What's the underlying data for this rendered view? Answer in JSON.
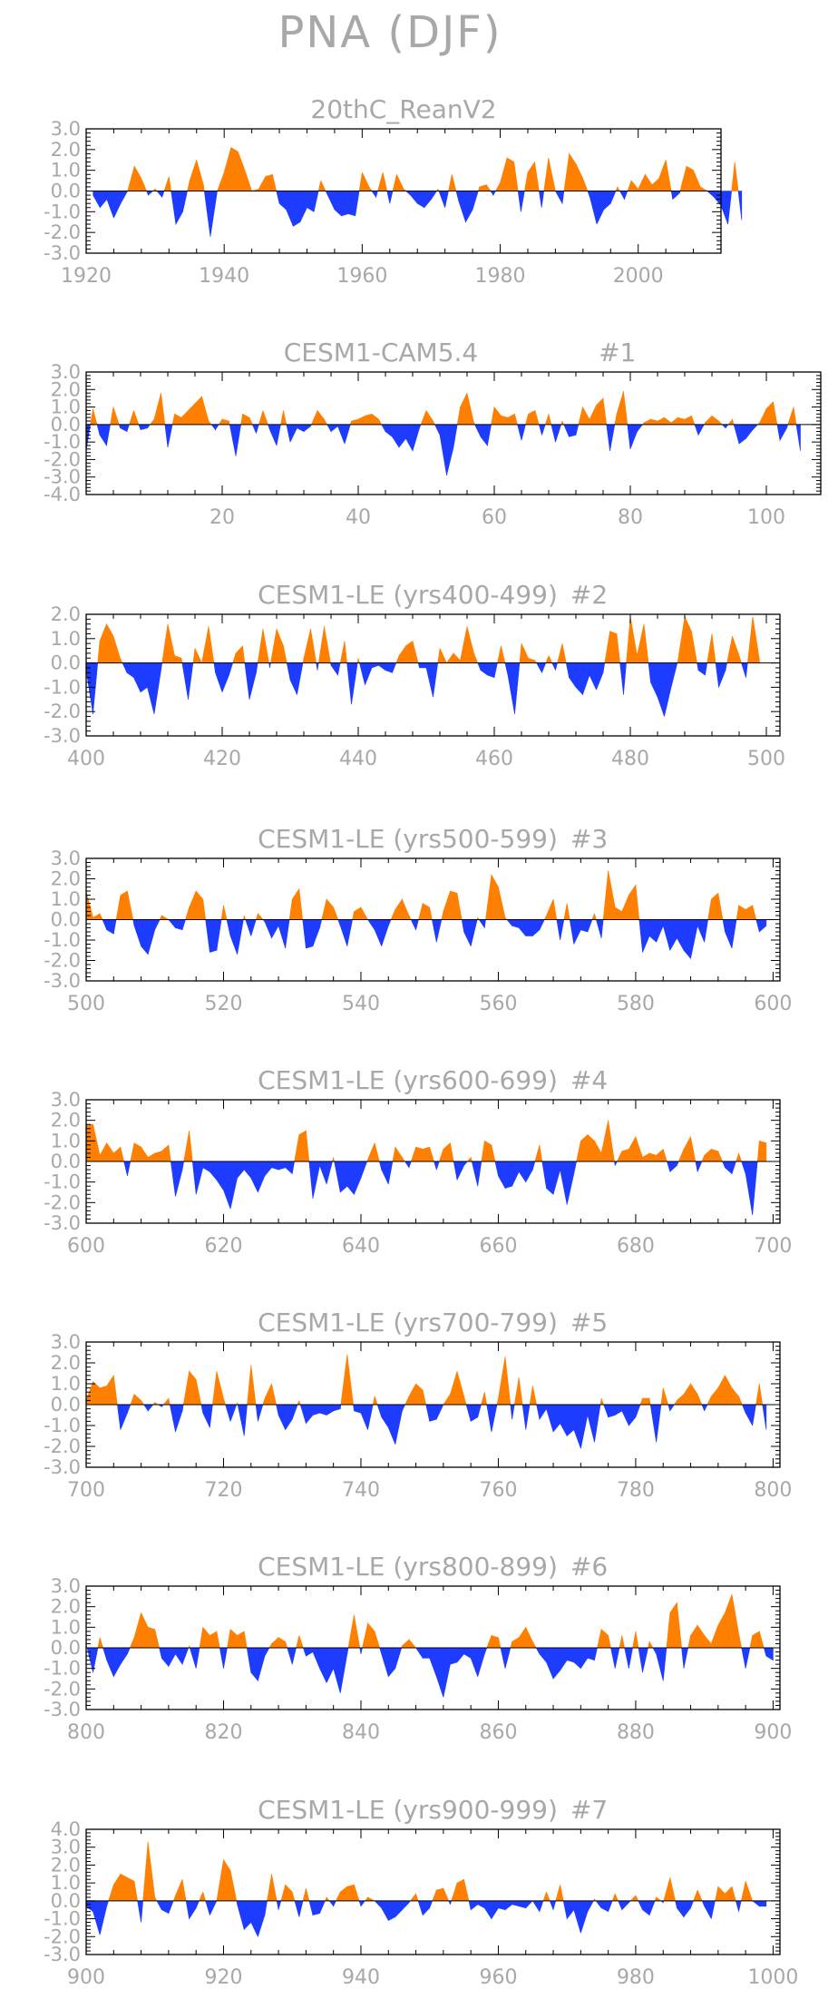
{
  "figure": {
    "title": "PNA (DJF)"
  },
  "colors": {
    "positive": "#ff8000",
    "negative": "#1e3cff",
    "text": "#a8a8a8",
    "frame": "#000000"
  },
  "chart_data": [
    {
      "type": "area",
      "title": "20thC_ReanV2",
      "xlim": [
        1920,
        2012
      ],
      "ylim": [
        -3,
        3
      ],
      "yticks": [
        3.0,
        2.0,
        1.0,
        0.0,
        -1.0,
        -2.0,
        -3.0
      ],
      "ytick_labels": [
        "3.0",
        "2.0",
        "1.0",
        "0.0",
        "-1.0",
        "-2.0",
        "-3.0"
      ],
      "xticks": [
        1920,
        1940,
        1960,
        1980,
        2000
      ],
      "xtick_labels": [
        "1920",
        "1940",
        "1960",
        "1980",
        "2000"
      ],
      "x_start": 1921,
      "values": [
        -0.2,
        -0.8,
        -0.4,
        -1.3,
        -0.6,
        0.0,
        1.2,
        0.6,
        -0.2,
        0.1,
        -0.3,
        0.7,
        -1.6,
        -1.0,
        0.5,
        1.5,
        0.3,
        -2.2,
        0.0,
        0.9,
        2.1,
        1.9,
        1.0,
        0.0,
        0.1,
        0.7,
        0.8,
        -0.6,
        -0.9,
        -1.7,
        -1.5,
        -0.8,
        -1.0,
        0.5,
        -0.2,
        -0.9,
        -1.2,
        -1.1,
        -1.2,
        0.9,
        0.2,
        -0.3,
        0.9,
        -0.6,
        0.8,
        0.1,
        -0.2,
        -0.6,
        -0.8,
        -0.4,
        0.1,
        -0.8,
        0.8,
        -0.5,
        -1.5,
        -0.9,
        0.2,
        0.3,
        -0.2,
        0.4,
        1.6,
        1.4,
        -1.0,
        0.9,
        1.4,
        -0.8,
        1.6,
        0.0,
        -0.6,
        1.8,
        1.3,
        0.6,
        -0.3,
        -1.6,
        -0.9,
        -0.6,
        0.2,
        -0.4,
        0.5,
        0.1,
        0.8,
        0.3,
        0.6,
        1.5,
        -0.4,
        -0.1,
        1.2,
        1.0,
        0.2,
        0.0,
        -0.3,
        -0.7,
        -1.6,
        1.4,
        -1.4
      ]
    },
    {
      "type": "area",
      "title": "CESM1-CAM5.4",
      "run_label": "#1",
      "xlim": [
        0,
        108
      ],
      "ylim": [
        -4,
        3
      ],
      "yticks": [
        3.0,
        2.0,
        1.0,
        0.0,
        -1.0,
        -2.0,
        -3.0,
        -4.0
      ],
      "ytick_labels": [
        "3.0",
        "2.0",
        "1.0",
        "0.0",
        "-1.0",
        "-2.0",
        "-3.0",
        "-4.0"
      ],
      "xticks": [
        20,
        40,
        60,
        80,
        100
      ],
      "xtick_labels": [
        "20",
        "40",
        "60",
        "80",
        "100"
      ],
      "x_start": 0,
      "values": [
        -1.5,
        0.9,
        -0.6,
        -1.2,
        1.0,
        -0.2,
        -0.4,
        0.8,
        -0.3,
        -0.2,
        0.3,
        1.8,
        -1.3,
        0.6,
        0.4,
        0.8,
        1.2,
        1.6,
        0.2,
        -0.3,
        0.3,
        0.2,
        -1.8,
        0.6,
        0.4,
        -0.5,
        0.8,
        -0.3,
        -1.2,
        0.8,
        -1.0,
        -0.2,
        -0.4,
        -0.1,
        0.8,
        0.3,
        -0.4,
        -0.1,
        -1.1,
        0.2,
        0.3,
        0.5,
        0.6,
        0.3,
        -0.4,
        -0.7,
        -1.3,
        -0.8,
        -1.5,
        -0.2,
        0.8,
        0.2,
        -0.6,
        -2.9,
        -1.3,
        1.0,
        1.8,
        0.1,
        -0.7,
        -1.2,
        1.0,
        0.5,
        0.4,
        0.6,
        -0.9,
        0.6,
        0.8,
        -0.6,
        0.6,
        -1.0,
        0.2,
        -0.7,
        -0.6,
        1.0,
        0.3,
        1.1,
        1.5,
        -1.5,
        0.6,
        1.9,
        -1.4,
        -0.4,
        0.1,
        0.3,
        0.2,
        0.4,
        0.1,
        0.4,
        0.3,
        0.5,
        -0.6,
        0.1,
        0.5,
        0.2,
        -0.2,
        0.3,
        -1.1,
        -0.8,
        -0.3,
        0.1,
        0.9,
        1.3,
        -0.9,
        -0.2,
        1.0,
        -1.5
      ]
    },
    {
      "type": "area",
      "title": "CESM1-LE (yrs400-499)",
      "run_label": "#2",
      "xlim": [
        400,
        502
      ],
      "ylim": [
        -3,
        2
      ],
      "yticks": [
        2.0,
        1.0,
        0.0,
        -1.0,
        -2.0,
        -3.0
      ],
      "ytick_labels": [
        "2.0",
        "1.0",
        "0.0",
        "-1.0",
        "-2.0",
        "-3.0"
      ],
      "xticks": [
        400,
        420,
        440,
        460,
        480,
        500
      ],
      "xtick_labels": [
        "400",
        "420",
        "440",
        "460",
        "480",
        "500"
      ],
      "x_start": 400,
      "values": [
        -0.3,
        -2.1,
        0.9,
        1.6,
        1.1,
        0.2,
        -0.4,
        -0.6,
        -1.2,
        -1.0,
        -2.1,
        -0.3,
        1.6,
        0.3,
        0.2,
        -1.5,
        0.6,
        0.0,
        1.5,
        -0.4,
        -1.2,
        -0.5,
        0.4,
        0.7,
        -1.5,
        -0.4,
        1.4,
        -0.2,
        1.4,
        0.7,
        -0.7,
        -1.3,
        0.2,
        1.4,
        -0.3,
        1.5,
        -0.1,
        -0.5,
        0.9,
        -1.7,
        0.2,
        -0.9,
        -0.2,
        -0.1,
        -0.3,
        -0.4,
        0.3,
        0.7,
        0.9,
        -0.2,
        -0.2,
        -1.4,
        0.6,
        0.0,
        0.4,
        0.1,
        1.5,
        0.4,
        -0.3,
        -0.5,
        -0.6,
        0.7,
        -0.5,
        -2.1,
        0.8,
        0.2,
        0.1,
        -0.4,
        0.3,
        -0.3,
        0.8,
        -0.6,
        -1.0,
        -1.3,
        -0.5,
        -1.1,
        -0.4,
        1.3,
        1.2,
        -1.3,
        1.9,
        0.3,
        1.6,
        -0.8,
        -1.4,
        -2.2,
        -1.0,
        0.1,
        1.9,
        1.3,
        -0.3,
        -0.5,
        1.2,
        -1.0,
        -0.3,
        1.1,
        0.3,
        -0.6,
        1.9,
        0.1
      ]
    },
    {
      "type": "area",
      "title": "CESM1-LE (yrs500-599)",
      "run_label": "#3",
      "xlim": [
        500,
        601
      ],
      "ylim": [
        -3,
        3
      ],
      "yticks": [
        3.0,
        2.0,
        1.0,
        0.0,
        -1.0,
        -2.0,
        -3.0
      ],
      "ytick_labels": [
        "3.0",
        "2.0",
        "1.0",
        "0.0",
        "-1.0",
        "-2.0",
        "-3.0"
      ],
      "xticks": [
        500,
        520,
        540,
        560,
        580,
        600
      ],
      "xtick_labels": [
        "500",
        "520",
        "540",
        "560",
        "580",
        "600"
      ],
      "x_start": 500,
      "values": [
        1.4,
        0.1,
        0.3,
        -0.5,
        -0.7,
        1.2,
        1.4,
        -0.3,
        -1.3,
        -1.7,
        -0.5,
        0.2,
        0.0,
        -0.4,
        -0.5,
        0.6,
        1.4,
        1.0,
        -1.6,
        -1.5,
        0.7,
        -0.8,
        -1.7,
        0.2,
        -0.8,
        0.3,
        -0.1,
        -0.9,
        -0.3,
        -1.4,
        1.0,
        1.5,
        -1.4,
        -1.3,
        -0.4,
        1.0,
        0.6,
        -0.3,
        -1.3,
        0.4,
        0.6,
        0.0,
        -0.5,
        -1.3,
        -0.3,
        0.5,
        1.0,
        0.2,
        -0.5,
        0.8,
        0.6,
        -1.1,
        0.4,
        1.4,
        1.3,
        -0.6,
        -1.3,
        0.1,
        -0.4,
        2.2,
        1.6,
        0.1,
        -0.3,
        -0.4,
        -0.8,
        -0.8,
        -0.5,
        0.2,
        1.0,
        -1.0,
        0.8,
        -1.2,
        -0.5,
        -0.6,
        0.3,
        -0.9,
        2.4,
        0.6,
        0.4,
        1.2,
        1.7,
        -1.6,
        -0.8,
        -1.1,
        -0.3,
        -1.5,
        -0.9,
        -1.5,
        -1.9,
        -0.3,
        -1.1,
        1.0,
        1.3,
        -0.6,
        -1.4,
        0.7,
        0.5,
        0.7,
        -0.6,
        -0.3
      ]
    },
    {
      "type": "area",
      "title": "CESM1-LE (yrs600-699)",
      "run_label": "#4",
      "xlim": [
        600,
        701
      ],
      "ylim": [
        -3,
        3
      ],
      "yticks": [
        3.0,
        2.0,
        1.0,
        0.0,
        -1.0,
        -2.0,
        -3.0
      ],
      "ytick_labels": [
        "3.0",
        "2.0",
        "1.0",
        "0.0",
        "-1.0",
        "-2.0",
        "-3.0"
      ],
      "xticks": [
        600,
        620,
        640,
        660,
        680,
        700
      ],
      "xtick_labels": [
        "600",
        "620",
        "640",
        "660",
        "680",
        "700"
      ],
      "x_start": 600,
      "values": [
        1.8,
        1.8,
        0.3,
        0.9,
        0.4,
        0.7,
        -0.7,
        0.9,
        0.7,
        0.2,
        0.4,
        0.5,
        0.8,
        -1.7,
        -0.4,
        1.5,
        -1.6,
        -0.3,
        -0.5,
        -0.9,
        -1.4,
        -2.3,
        -0.8,
        -0.4,
        -0.8,
        -1.5,
        -0.7,
        -0.3,
        -0.4,
        -0.3,
        -0.6,
        1.3,
        1.5,
        -1.8,
        -0.2,
        -1.1,
        0.2,
        -1.5,
        -1.2,
        -1.6,
        -0.8,
        0.1,
        0.9,
        -0.4,
        -1.1,
        0.7,
        0.2,
        -0.3,
        0.7,
        0.6,
        0.7,
        -0.4,
        0.6,
        0.9,
        -0.9,
        -0.2,
        0.2,
        -1.2,
        1.0,
        0.8,
        -0.7,
        -1.3,
        -1.2,
        -0.5,
        -1.0,
        -0.4,
        0.8,
        -1.3,
        -1.6,
        -0.4,
        -2.1,
        -0.6,
        1.0,
        1.3,
        1.0,
        0.4,
        2.0,
        -0.2,
        0.5,
        0.6,
        1.2,
        0.2,
        0.4,
        0.3,
        0.6,
        -0.5,
        -0.2,
        0.6,
        1.2,
        -0.5,
        0.3,
        0.6,
        0.5,
        -0.3,
        -0.6,
        0.4,
        -0.6,
        -2.6,
        1.0,
        0.9
      ]
    },
    {
      "type": "area",
      "title": "CESM1-LE (yrs700-799)",
      "run_label": "#5",
      "xlim": [
        700,
        801
      ],
      "ylim": [
        -3,
        3
      ],
      "yticks": [
        3.0,
        2.0,
        1.0,
        0.0,
        -1.0,
        -2.0,
        -3.0
      ],
      "ytick_labels": [
        "3.0",
        "2.0",
        "1.0",
        "0.0",
        "-1.0",
        "-2.0",
        "-3.0"
      ],
      "xticks": [
        700,
        720,
        740,
        760,
        780,
        800
      ],
      "xtick_labels": [
        "700",
        "720",
        "740",
        "760",
        "780",
        "800"
      ],
      "x_start": 700,
      "values": [
        0.2,
        1.1,
        0.8,
        0.9,
        1.4,
        -1.2,
        -0.4,
        0.5,
        0.2,
        -0.3,
        0.1,
        -0.1,
        0.3,
        -1.3,
        -0.3,
        1.6,
        1.2,
        -0.4,
        -1.1,
        1.6,
        0.3,
        -0.8,
        0.1,
        -1.5,
        1.9,
        -0.8,
        0.3,
        1.0,
        -0.5,
        -1.2,
        -0.7,
        0.2,
        -0.9,
        -0.5,
        -0.4,
        -0.5,
        -0.3,
        -0.2,
        2.4,
        -0.3,
        -0.4,
        -1.2,
        0.4,
        -0.6,
        -1.1,
        -1.9,
        -0.3,
        0.4,
        1.0,
        0.7,
        -0.8,
        -0.7,
        0.0,
        0.5,
        1.6,
        0.4,
        -0.8,
        -0.6,
        0.6,
        -1.3,
        0.3,
        2.3,
        -0.7,
        1.3,
        -1.2,
        0.9,
        -0.7,
        -0.2,
        -1.3,
        -0.9,
        -1.5,
        -1.2,
        -2.1,
        -0.5,
        -1.8,
        0.3,
        -0.6,
        -0.5,
        -0.3,
        -1.0,
        -0.6,
        0.3,
        0.3,
        -1.8,
        0.8,
        -0.3,
        0.2,
        0.5,
        1.0,
        0.5,
        -0.3,
        0.4,
        0.8,
        1.4,
        0.8,
        0.4,
        -0.4,
        -1.0,
        1.0,
        -1.2
      ]
    },
    {
      "type": "area",
      "title": "CESM1-LE (yrs800-899)",
      "run_label": "#6",
      "xlim": [
        800,
        901
      ],
      "ylim": [
        -3,
        3
      ],
      "yticks": [
        3.0,
        2.0,
        1.0,
        0.0,
        -1.0,
        -2.0,
        -3.0
      ],
      "ytick_labels": [
        "3.0",
        "2.0",
        "1.0",
        "0.0",
        "-1.0",
        "-2.0",
        "-3.0"
      ],
      "xticks": [
        800,
        820,
        840,
        860,
        880,
        900
      ],
      "xtick_labels": [
        "800",
        "820",
        "840",
        "860",
        "880",
        "900"
      ],
      "x_start": 800,
      "values": [
        0.2,
        -1.2,
        0.5,
        -0.6,
        -1.4,
        -0.8,
        -0.3,
        0.5,
        1.7,
        1.0,
        0.9,
        -0.5,
        -0.9,
        -0.3,
        -0.8,
        0.1,
        -1.0,
        1.0,
        0.6,
        0.8,
        -1.0,
        0.9,
        0.6,
        0.8,
        -1.2,
        -1.6,
        -0.4,
        0.2,
        0.5,
        0.3,
        -0.8,
        0.6,
        -0.4,
        -0.2,
        -1.0,
        -1.7,
        -1.0,
        -2.2,
        -0.3,
        1.6,
        -0.3,
        1.2,
        0.8,
        -0.3,
        -1.4,
        -1.0,
        0.1,
        0.4,
        0.0,
        -0.5,
        -0.5,
        -1.4,
        -2.4,
        -0.8,
        -0.7,
        -0.3,
        -0.5,
        -1.4,
        -0.3,
        0.6,
        0.5,
        -1.0,
        0.3,
        0.5,
        1.0,
        0.3,
        -0.3,
        -0.7,
        -1.5,
        -1.1,
        -0.6,
        -0.7,
        -1.0,
        -0.5,
        -0.6,
        0.9,
        0.6,
        -1.0,
        0.6,
        -1.0,
        0.8,
        -1.2,
        0.3,
        -0.3,
        -1.6,
        1.7,
        2.2,
        -1.0,
        0.6,
        1.1,
        0.6,
        0.2,
        1.1,
        1.7,
        2.6,
        0.7,
        -1.0,
        0.6,
        0.8,
        -0.4,
        -0.6
      ]
    },
    {
      "type": "area",
      "title": "CESM1-LE (yrs900-999)",
      "run_label": "#7",
      "xlim": [
        900,
        1001
      ],
      "ylim": [
        -3,
        4
      ],
      "yticks": [
        4.0,
        3.0,
        2.0,
        1.0,
        0.0,
        -1.0,
        -2.0,
        -3.0
      ],
      "ytick_labels": [
        "4.0",
        "3.0",
        "2.0",
        "1.0",
        "0.0",
        "-1.0",
        "-2.0",
        "-3.0"
      ],
      "xticks": [
        900,
        920,
        940,
        960,
        980,
        1000
      ],
      "xtick_labels": [
        "900",
        "920",
        "940",
        "960",
        "980",
        "1000"
      ],
      "x_start": 900,
      "values": [
        -0.3,
        -0.6,
        -1.9,
        -0.3,
        0.9,
        1.5,
        1.3,
        1.1,
        -1.2,
        3.3,
        0.2,
        -0.5,
        -0.7,
        0.3,
        1.2,
        -1.0,
        -0.4,
        0.5,
        -0.8,
        0.0,
        2.3,
        1.7,
        -0.2,
        -1.6,
        -1.2,
        -2.0,
        -0.8,
        1.5,
        -0.5,
        0.9,
        0.5,
        -0.9,
        0.7,
        -0.8,
        -0.7,
        0.2,
        -0.3,
        0.5,
        0.8,
        0.9,
        -0.3,
        0.2,
        0.0,
        -0.4,
        -1.1,
        -0.9,
        -0.5,
        -0.1,
        0.4,
        -0.8,
        -0.4,
        0.6,
        0.7,
        -0.2,
        1.0,
        1.2,
        -0.5,
        -0.2,
        -0.4,
        -1.0,
        -0.4,
        -0.5,
        -0.2,
        -0.3,
        -0.4,
        0.0,
        -0.6,
        0.5,
        -0.5,
        0.9,
        -1.0,
        -0.5,
        -1.8,
        -0.6,
        0.1,
        -0.4,
        -0.6,
        0.4,
        -0.5,
        -0.1,
        0.3,
        -0.5,
        -0.8,
        0.2,
        -0.1,
        1.3,
        -0.4,
        -0.9,
        -0.4,
        0.6,
        -0.3,
        -1.0,
        0.8,
        0.4,
        0.8,
        -0.6,
        1.1,
        0.0,
        -0.3,
        -0.3
      ]
    }
  ]
}
